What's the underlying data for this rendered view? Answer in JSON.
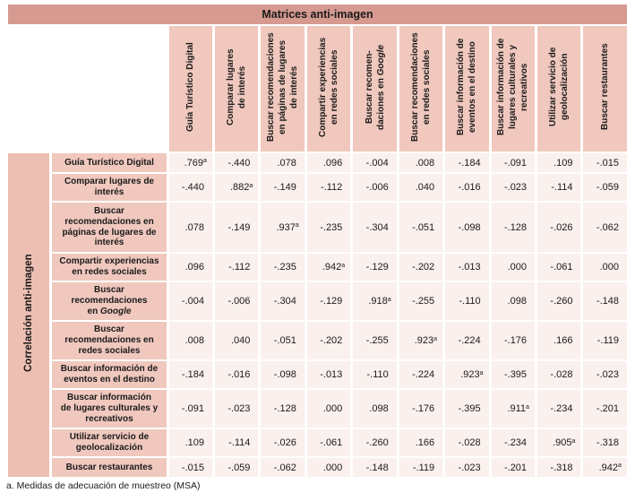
{
  "colors": {
    "title_bar": "#D69A90",
    "header_cell": "#F0C8BD",
    "group_band": "#EDBFB3",
    "data_cell": "#FAF0ED",
    "text": "#1A1A1A",
    "page_background": "#FFFFFF"
  },
  "chart_data": {
    "type": "table",
    "title": "Matrices anti-imagen",
    "row_group_label": "Correlación anti-imagen",
    "footnote": "a. Medidas de adecuación de muestreo (MSA)",
    "msa_superscript": "a",
    "column_headers": [
      "Guía Turístico Digital",
      "Comparar lugares\nde interés",
      "Buscar recomendaciones\nen páginas de lugares\nde interés",
      "Compartir experiencias\nen redes sociales",
      "Buscar recomen-\ndaciones en *Google*",
      "Buscar recomendaciones\nen redes sociales",
      "Buscar información de\neventos en el destino",
      "Buscar información de\nlugares culturales y\nrecreativos",
      "Utilizar servicio de\ngeolocalización",
      "Buscar restaurantes"
    ],
    "rows": [
      {
        "label": "Guía Turístico Digital",
        "values": [
          ".769",
          "-.440",
          ".078",
          ".096",
          "-.004",
          ".008",
          "-.184",
          "-.091",
          ".109",
          "-.015"
        ]
      },
      {
        "label": "Comparar lugares de\ninterés",
        "values": [
          "-.440",
          ".882",
          "-.149",
          "-.112",
          "-.006",
          ".040",
          "-.016",
          "-.023",
          "-.114",
          "-.059"
        ]
      },
      {
        "label": "Buscar\nrecomendaciones en\npáginas de lugares de\ninterés",
        "values": [
          ".078",
          "-.149",
          ".937",
          "-.235",
          "-.304",
          "-.051",
          "-.098",
          "-.128",
          "-.026",
          "-.062"
        ]
      },
      {
        "label": "Compartir experiencias\nen redes sociales",
        "values": [
          ".096",
          "-.112",
          "-.235",
          ".942",
          "-.129",
          "-.202",
          "-.013",
          ".000",
          "-.061",
          ".000"
        ]
      },
      {
        "label": "Buscar\nrecomendaciones\nen *Google*",
        "values": [
          "-.004",
          "-.006",
          "-.304",
          "-.129",
          ".918",
          "-.255",
          "-.110",
          ".098",
          "-.260",
          "-.148"
        ]
      },
      {
        "label": "Buscar\nrecomendaciones en\nredes sociales",
        "values": [
          ".008",
          ".040",
          "-.051",
          "-.202",
          "-.255",
          ".923",
          "-.224",
          "-.176",
          ".166",
          "-.119"
        ]
      },
      {
        "label": "Buscar información de\neventos en el destino",
        "values": [
          "-.184",
          "-.016",
          "-.098",
          "-.013",
          "-.110",
          "-.224",
          ".923",
          "-.395",
          "-.028",
          "-.023"
        ]
      },
      {
        "label": "Buscar información\nde lugares culturales y\nrecreativos",
        "values": [
          "-.091",
          "-.023",
          "-.128",
          ".000",
          ".098",
          "-.176",
          "-.395",
          ".911",
          "-.234",
          "-.201"
        ]
      },
      {
        "label": "Utilizar servicio de\ngeolocalización",
        "values": [
          ".109",
          "-.114",
          "-.026",
          "-.061",
          "-.260",
          ".166",
          "-.028",
          "-.234",
          ".905",
          "-.318"
        ]
      },
      {
        "label": "Buscar restaurantes",
        "values": [
          "-.015",
          "-.059",
          "-.062",
          ".000",
          "-.148",
          "-.119",
          "-.023",
          "-.201",
          "-.318",
          ".942"
        ]
      }
    ]
  }
}
